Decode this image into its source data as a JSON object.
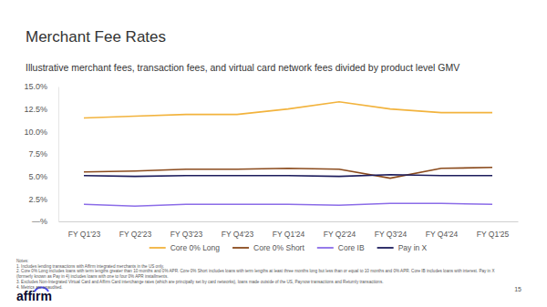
{
  "chart_data": {
    "type": "line",
    "title": "Merchant Fee Rates",
    "subtitle": "Illustrative merchant fees, transaction fees, and virtual card network fees divided by product level GMV",
    "categories": [
      "FY Q1'23",
      "FY Q2'23",
      "FY Q3'23",
      "FY Q4'23",
      "FY Q1'24",
      "FY Q2'24",
      "FY Q3'24",
      "FY Q4'24",
      "FY Q1'25"
    ],
    "series": [
      {
        "name": "Core 0% Long",
        "color": "#f2b33d",
        "values": [
          11.5,
          11.7,
          11.9,
          11.9,
          12.5,
          13.3,
          12.5,
          12.1,
          12.1
        ]
      },
      {
        "name": "Core 0% Short",
        "color": "#8a4a1c",
        "values": [
          5.5,
          5.6,
          5.8,
          5.8,
          5.9,
          5.8,
          4.8,
          5.9,
          6.0
        ]
      },
      {
        "name": "Core IB",
        "color": "#8b6ce8",
        "values": [
          1.9,
          1.7,
          1.9,
          1.9,
          1.9,
          1.8,
          2.0,
          2.0,
          1.9
        ]
      },
      {
        "name": "Pay in X",
        "color": "#1c1c5c",
        "values": [
          5.1,
          5.0,
          5.1,
          5.1,
          5.1,
          5.0,
          5.2,
          5.1,
          5.1
        ]
      }
    ],
    "ylim": [
      0,
      15
    ],
    "yticks": [
      {
        "value": 0,
        "label": "—%"
      },
      {
        "value": 2.5,
        "label": "2.5%"
      },
      {
        "value": 5,
        "label": "5.0%"
      },
      {
        "value": 7.5,
        "label": "7.5%"
      },
      {
        "value": 10,
        "label": "10.0%"
      },
      {
        "value": 12.5,
        "label": "12.5%"
      },
      {
        "value": 15,
        "label": "15.0%"
      }
    ],
    "grid": false,
    "legend": "bottom"
  },
  "footer": {
    "notes_title": "Notes:",
    "notes": [
      "1.   Includes lending transactions with Affirm integrated merchants in the US only.",
      "2.   Core 0% Long includes loans with term lengths greater than 10 months and 0% APR. Core 0% Short includes loans with term lengths at least three months long but less than or equal to 10 months and 0% APR. Core IB includes loans with interest. Pay in X (formerly known as Pay in 4) includes loans with one to four 0% APR installments.",
      "3.   Excludes Non-Integrated Virtual Card and Affirm Card interchange rates (which are principally set by card networks), loans made outside of the US, Paynow transactions and Returnly transactions.",
      "4.   Metrics are unaudited."
    ],
    "page_number": "15",
    "logo": "affirm"
  }
}
